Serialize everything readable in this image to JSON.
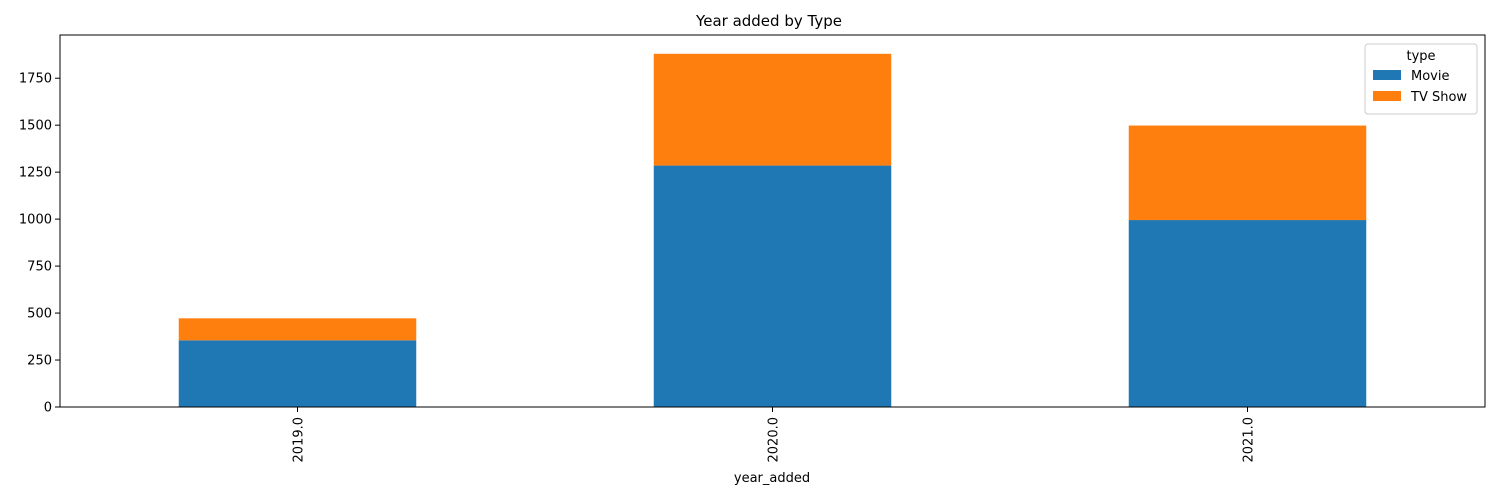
{
  "chart_data": {
    "type": "bar",
    "stacked": true,
    "title": "Year added by Type",
    "xlabel": "year_added",
    "ylabel": "",
    "categories": [
      "2019.0",
      "2020.0",
      "2021.0"
    ],
    "series": [
      {
        "name": "Movie",
        "color": "#1f77b4",
        "values": [
          355,
          1285,
          995
        ]
      },
      {
        "name": "TV Show",
        "color": "#ff7f0e",
        "values": [
          117,
          595,
          503
        ]
      }
    ],
    "ylim": [
      0,
      1980
    ],
    "yticks": [
      0,
      250,
      500,
      750,
      1000,
      1250,
      1500,
      1750
    ],
    "legend": {
      "title": "type",
      "placement": "top-right"
    },
    "grid": false
  }
}
